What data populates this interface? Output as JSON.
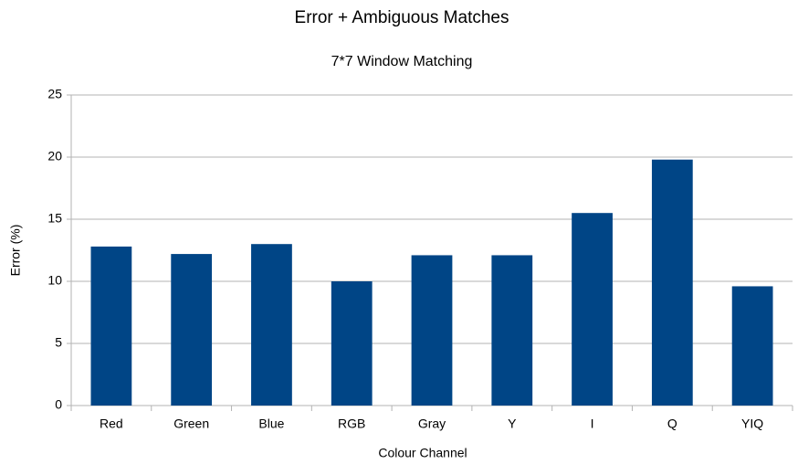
{
  "chart_data": {
    "type": "bar",
    "title": "Error + Ambiguous Matches",
    "subtitle": "7*7 Window Matching",
    "x_label": "Colour Channel",
    "y_label": "Error (%)",
    "categories": [
      "Red",
      "Green",
      "Blue",
      "RGB",
      "Gray",
      "Y",
      "I",
      "Q",
      "YIQ"
    ],
    "values": [
      12.8,
      12.2,
      13.0,
      10.0,
      12.1,
      12.1,
      15.5,
      19.8,
      9.6
    ],
    "color": "#004586",
    "ylim": [
      0,
      25
    ],
    "yticks": [
      0,
      5,
      10,
      15,
      20,
      25
    ],
    "grid": true
  }
}
